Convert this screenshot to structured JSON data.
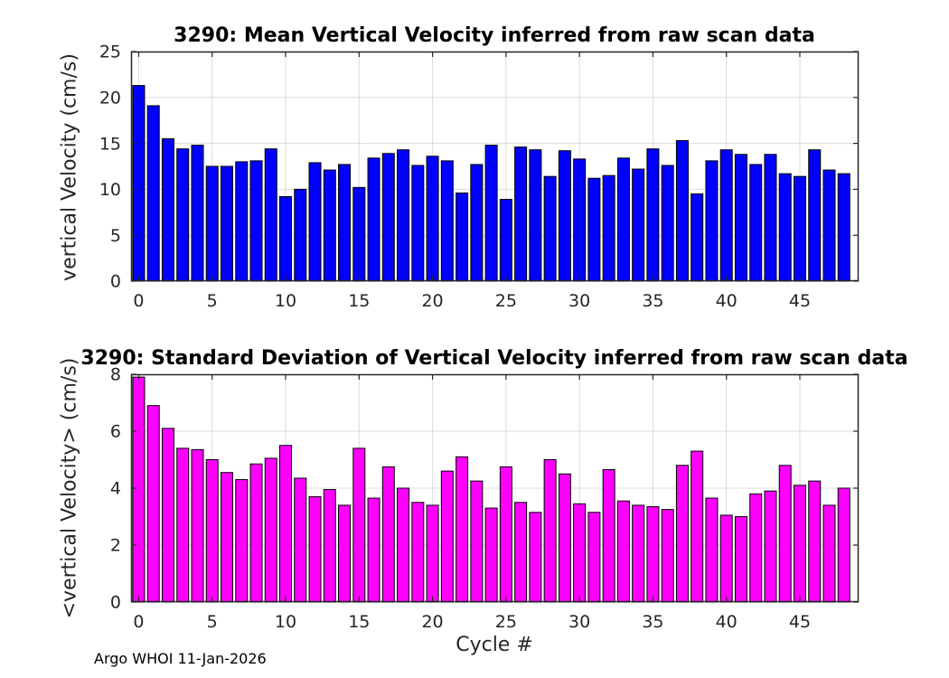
{
  "figure": {
    "footer": "Argo WHOI 11-Jan-2026"
  },
  "colors": {
    "mean_bar": "#0000ff",
    "std_bar": "#ff00ff",
    "bar_edge": "#000000",
    "axis": "#262626",
    "grid": "#dcdcdc",
    "tick_text": "#262626",
    "background": "#ffffff"
  },
  "chart_data": [
    {
      "type": "bar",
      "title": "3290: Mean Vertical Velocity inferred from raw scan data",
      "xlabel": "",
      "ylabel": "vertical Velocity (cm/s)",
      "bar_color": "#0000ff",
      "edge_color": "#000000",
      "grid": true,
      "legend": "none",
      "xlim": [
        -0.52,
        49.0
      ],
      "ylim": [
        0,
        25
      ],
      "xticks": [
        0,
        5,
        10,
        15,
        20,
        25,
        30,
        35,
        40,
        45
      ],
      "yticks": [
        0,
        5,
        10,
        15,
        20,
        25
      ],
      "bar_width": 0.8,
      "x": [
        0,
        1,
        2,
        3,
        4,
        5,
        6,
        7,
        8,
        9,
        10,
        11,
        12,
        13,
        14,
        15,
        16,
        17,
        18,
        19,
        20,
        21,
        22,
        23,
        24,
        25,
        26,
        27,
        28,
        29,
        30,
        31,
        32,
        33,
        34,
        35,
        36,
        37,
        38,
        39,
        40,
        41,
        42,
        43,
        44,
        45,
        46,
        47,
        48
      ],
      "values": [
        21.3,
        19.1,
        15.5,
        14.4,
        14.8,
        12.5,
        12.5,
        13.0,
        13.1,
        14.4,
        9.2,
        10.0,
        12.9,
        12.1,
        12.7,
        10.2,
        13.4,
        13.9,
        14.3,
        12.6,
        13.6,
        13.1,
        9.6,
        12.7,
        14.8,
        8.9,
        14.6,
        14.3,
        11.4,
        14.2,
        13.3,
        11.2,
        11.5,
        13.4,
        12.2,
        14.4,
        12.6,
        15.3,
        9.5,
        13.1,
        14.3,
        13.8,
        12.7,
        13.8,
        11.7,
        11.4,
        14.3,
        12.1,
        11.7
      ]
    },
    {
      "type": "bar",
      "title": "3290: Standard Deviation of Vertical Velocity inferred from raw scan data",
      "xlabel": "Cycle #",
      "ylabel": "<vertical Velocity> (cm/s)",
      "bar_color": "#ff00ff",
      "edge_color": "#000000",
      "grid": true,
      "legend": "none",
      "xlim": [
        -0.52,
        49.0
      ],
      "ylim": [
        0,
        8
      ],
      "xticks": [
        0,
        5,
        10,
        15,
        20,
        25,
        30,
        35,
        40,
        45
      ],
      "yticks": [
        0,
        2,
        4,
        6,
        8
      ],
      "bar_width": 0.8,
      "x": [
        0,
        1,
        2,
        3,
        4,
        5,
        6,
        7,
        8,
        9,
        10,
        11,
        12,
        13,
        14,
        15,
        16,
        17,
        18,
        19,
        20,
        21,
        22,
        23,
        24,
        25,
        26,
        27,
        28,
        29,
        30,
        31,
        32,
        33,
        34,
        35,
        36,
        37,
        38,
        39,
        40,
        41,
        42,
        43,
        44,
        45,
        46,
        47,
        48
      ],
      "values": [
        7.9,
        6.9,
        6.1,
        5.4,
        5.35,
        5.0,
        4.55,
        4.3,
        4.85,
        5.05,
        5.5,
        4.35,
        3.7,
        3.95,
        3.4,
        5.4,
        3.65,
        4.75,
        4.0,
        3.5,
        3.4,
        4.6,
        5.1,
        4.25,
        3.3,
        4.75,
        3.5,
        3.15,
        5.0,
        4.5,
        3.45,
        3.15,
        4.65,
        3.55,
        3.4,
        3.35,
        3.25,
        4.8,
        5.3,
        3.65,
        3.05,
        3.0,
        3.8,
        3.9,
        4.8,
        4.1,
        4.25,
        3.4,
        4.0
      ]
    }
  ]
}
